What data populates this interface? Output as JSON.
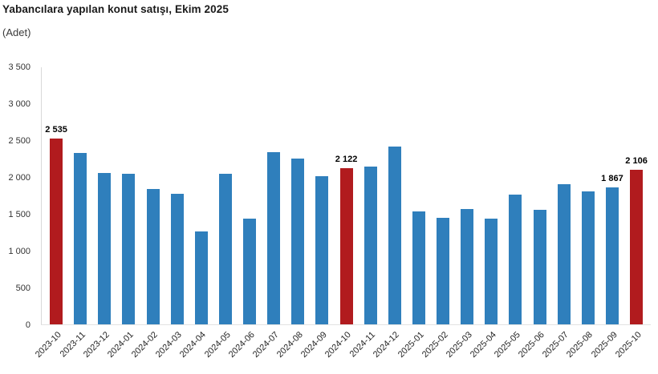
{
  "header": {
    "title": "Yabancılara yapılan konut satışı, Ekim 2025",
    "subtitle": "(Adet)"
  },
  "colors": {
    "bar_default": "#2f7fbc",
    "bar_highlight": "#b11b1e",
    "axis_line": "#d9d9d9",
    "title_text": "#1a1a1a",
    "tick_text": "#333333",
    "value_label_text": "#000000"
  },
  "chart_data": {
    "type": "bar",
    "title": "Yabancılara yapılan konut satışı, Ekim 2025",
    "xlabel": "",
    "ylabel": "(Adet)",
    "ylim": [
      0,
      3500
    ],
    "ytick_interval": 500,
    "yticks": [
      "3 500",
      "3 000",
      "2 500",
      "2 000",
      "1 500",
      "1 000",
      "500",
      "0"
    ],
    "grid": false,
    "legend": false,
    "categories": [
      "2023-10",
      "2023-11",
      "2023-12",
      "2024-01",
      "2024-02",
      "2024-03",
      "2024-04",
      "2024-05",
      "2024-06",
      "2024-07",
      "2024-08",
      "2024-09",
      "2024-10",
      "2024-11",
      "2024-12",
      "2025-01",
      "2025-02",
      "2025-03",
      "2025-04",
      "2025-05",
      "2025-06",
      "2025-07",
      "2025-08",
      "2025-09",
      "2025-10"
    ],
    "values": [
      2535,
      2335,
      2057,
      2055,
      1840,
      1775,
      1264,
      2052,
      1434,
      2343,
      2253,
      2020,
      2122,
      2147,
      2416,
      1542,
      1452,
      1572,
      1438,
      1764,
      1561,
      1912,
      1814,
      1867,
      2106
    ],
    "highlight_indexes": [
      0,
      12,
      24
    ],
    "data_labels": {
      "0": "2 535",
      "12": "2 122",
      "23": "1 867",
      "24": "2 106"
    }
  }
}
